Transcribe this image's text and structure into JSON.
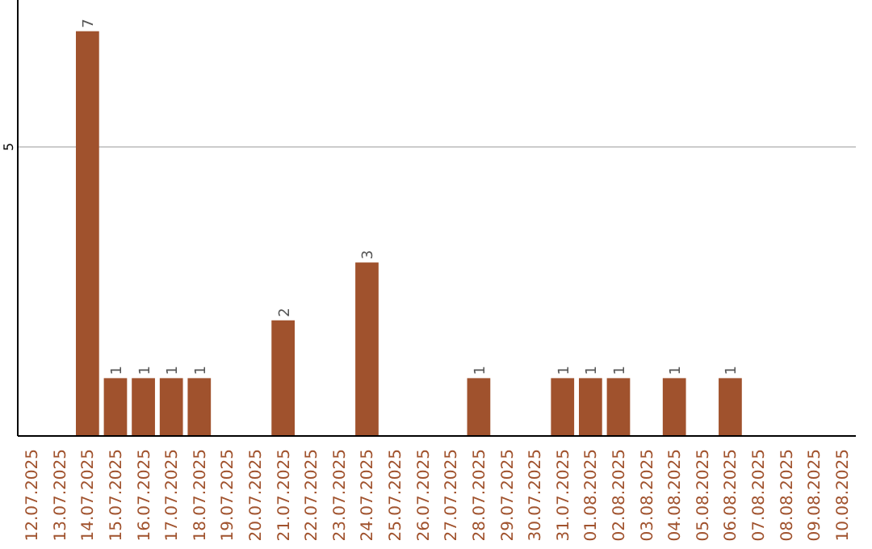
{
  "chart_data": {
    "type": "bar",
    "categories": [
      "12.07.2025",
      "13.07.2025",
      "14.07.2025",
      "15.07.2025",
      "16.07.2025",
      "17.07.2025",
      "18.07.2025",
      "19.07.2025",
      "20.07.2025",
      "21.07.2025",
      "22.07.2025",
      "23.07.2025",
      "24.07.2025",
      "25.07.2025",
      "26.07.2025",
      "27.07.2025",
      "28.07.2025",
      "29.07.2025",
      "30.07.2025",
      "31.07.2025",
      "01.08.2025",
      "02.08.2025",
      "03.08.2025",
      "04.08.2025",
      "05.08.2025",
      "06.08.2025",
      "07.08.2025",
      "08.08.2025",
      "09.08.2025",
      "10.08.2025"
    ],
    "values": [
      0,
      0,
      7,
      1,
      1,
      1,
      1,
      0,
      0,
      2,
      0,
      0,
      3,
      0,
      0,
      0,
      1,
      0,
      0,
      1,
      1,
      1,
      0,
      1,
      0,
      1,
      0,
      0,
      0,
      0
    ],
    "value_labels": [
      null,
      null,
      "7",
      "1",
      "1",
      "1",
      "1",
      null,
      null,
      "2",
      null,
      null,
      "3",
      null,
      null,
      null,
      "1",
      null,
      null,
      "1",
      "1",
      "1",
      null,
      "1",
      null,
      "1",
      null,
      null,
      null,
      null
    ],
    "color": "#a0522d",
    "ylim": [
      0,
      7.54
    ],
    "yticks": [
      5
    ],
    "grid": "y"
  }
}
